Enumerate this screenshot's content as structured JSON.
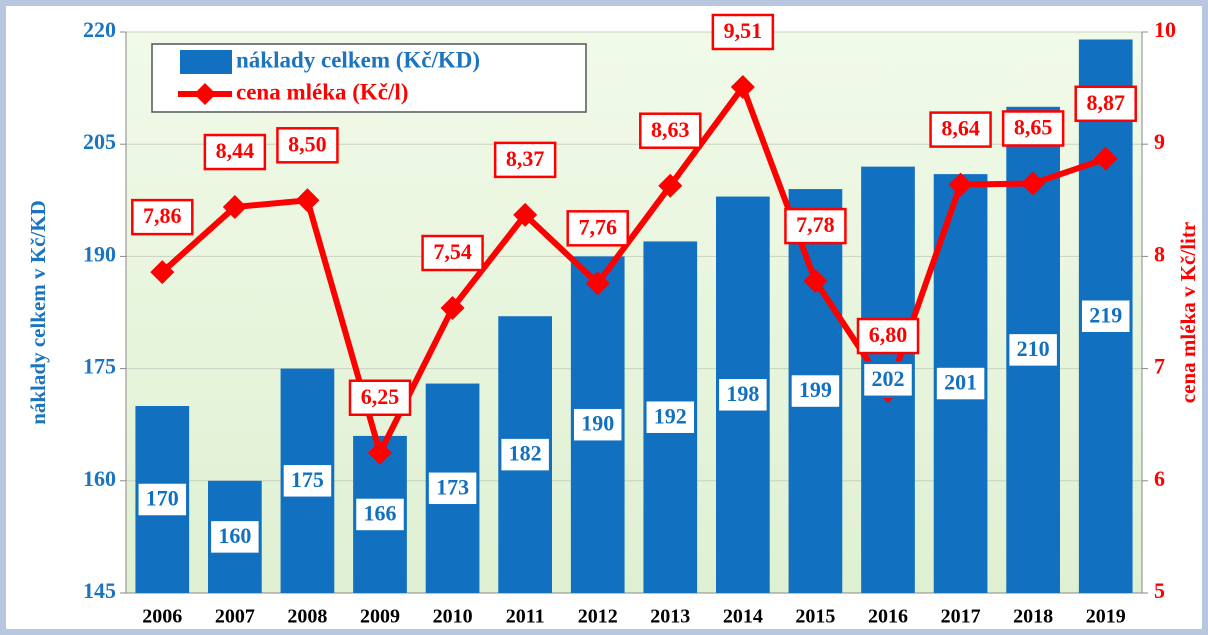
{
  "chart_data": {
    "type": "bar",
    "categories": [
      "2006",
      "2007",
      "2008",
      "2009",
      "2010",
      "2011",
      "2012",
      "2013",
      "2014",
      "2015",
      "2016",
      "2017",
      "2018",
      "2019"
    ],
    "series": [
      {
        "name": "náklady celkem (Kč/KD)",
        "color": "#1170bf",
        "type": "bar",
        "values": [
          170,
          160,
          175,
          166,
          173,
          182,
          190,
          192,
          198,
          199,
          202,
          201,
          210,
          219
        ]
      },
      {
        "name": "cena mléka (Kč/l)",
        "color": "#ff0000",
        "type": "line",
        "axis": "y2",
        "values": [
          7.86,
          8.44,
          8.5,
          6.25,
          7.54,
          8.37,
          7.76,
          8.63,
          9.51,
          7.78,
          6.8,
          8.64,
          8.65,
          8.87
        ],
        "value_labels": [
          "7,86",
          "8,44",
          "8,50",
          "6,25",
          "7,54",
          "8,37",
          "7,76",
          "8,63",
          "9,51",
          "7,78",
          "6,80",
          "8,64",
          "8,65",
          "8,87"
        ]
      }
    ],
    "ylabel": "náklady celkem v Kč/KD",
    "y2label": "cena mléka  v Kč/litr",
    "ylim": [
      145,
      220
    ],
    "yticks": [
      145,
      160,
      175,
      190,
      205,
      220
    ],
    "y2lim": [
      5,
      10
    ],
    "y2ticks": [
      5,
      6,
      7,
      8,
      9,
      10
    ],
    "grid": true,
    "legend": "upper left"
  }
}
